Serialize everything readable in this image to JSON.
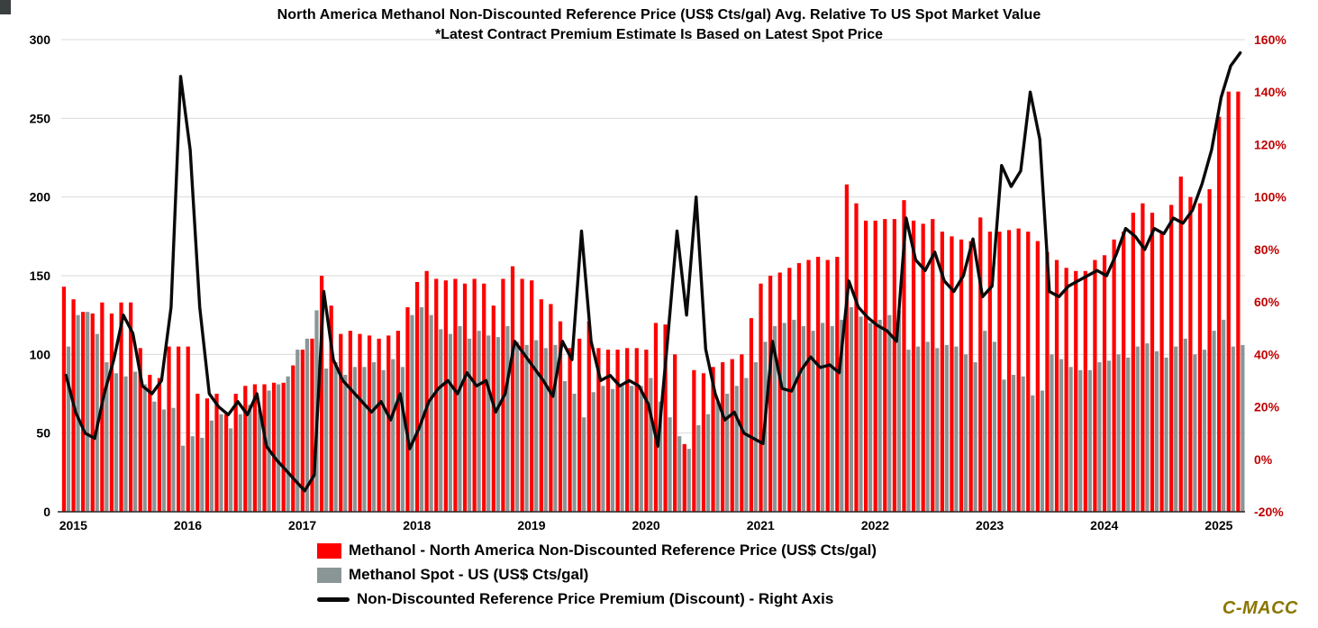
{
  "branding": {
    "watermark": "C-MACC",
    "color": "#8a7600"
  },
  "chart_data": {
    "type": "bar",
    "combo": "dual-axis bar + line",
    "title": "North America Methanol Non-Discounted Reference Price (US$ Cts/gal) Avg. Relative To US Spot Market Value",
    "subtitle": "*Latest Contract Premium Estimate Is Based on Latest Spot Price",
    "frequency": "monthly",
    "x_start": "2015-01",
    "x_end": "2025-04",
    "year_labels": [
      "2015",
      "2016",
      "2017",
      "2018",
      "2019",
      "2020",
      "2021",
      "2022",
      "2023",
      "2024",
      "2025"
    ],
    "axes": {
      "left": {
        "min": 0,
        "max": 300,
        "ticks": [
          0,
          50,
          100,
          150,
          200,
          250,
          300
        ],
        "label_color": "#000000"
      },
      "right": {
        "min": -20,
        "max": 160,
        "ticks": [
          -20,
          0,
          20,
          40,
          60,
          80,
          100,
          120,
          140,
          160
        ],
        "unit": "%",
        "label_color": "#C00000"
      }
    },
    "grid": {
      "horizontal": true,
      "color": "#d9d9d9"
    },
    "legend_position": "bottom-left",
    "series": [
      {
        "name": "Methanol - North America Non-Discounted Reference Price (US$ Cts/gal)",
        "type": "bar",
        "axis": "left",
        "color": "#fe0000",
        "values": [
          143,
          135,
          127,
          126,
          133,
          126,
          133,
          133,
          104,
          87,
          85,
          105,
          105,
          105,
          75,
          72,
          75,
          62,
          75,
          80,
          81,
          81,
          82,
          82,
          93,
          103,
          110,
          150,
          131,
          113,
          115,
          113,
          112,
          110,
          112,
          115,
          130,
          146,
          153,
          148,
          147,
          148,
          145,
          148,
          145,
          131,
          148,
          156,
          148,
          147,
          135,
          132,
          121,
          104,
          110,
          121,
          104,
          103,
          103,
          104,
          104,
          103,
          120,
          119,
          100,
          43,
          90,
          88,
          92,
          95,
          97,
          100,
          123,
          145,
          150,
          152,
          155,
          158,
          160,
          162,
          160,
          162,
          208,
          196,
          185,
          185,
          186,
          186,
          198,
          185,
          183,
          186,
          178,
          175,
          173,
          172,
          187,
          178,
          178,
          179,
          180,
          178,
          172,
          165,
          160,
          155,
          153,
          153,
          160,
          163,
          173,
          178,
          190,
          196,
          190,
          178,
          195,
          213,
          200,
          196,
          205,
          251,
          267,
          267
        ]
      },
      {
        "name": "Methanol Spot - US (US$ Cts/gal)",
        "type": "bar",
        "axis": "left",
        "color": "#8a9696",
        "values": [
          105,
          125,
          127,
          113,
          95,
          88,
          86,
          89,
          81,
          70,
          65,
          66,
          42,
          48,
          47,
          58,
          62,
          53,
          62,
          68,
          65,
          77,
          81,
          86,
          103,
          110,
          128,
          91,
          95,
          87,
          92,
          92,
          95,
          90,
          97,
          92,
          125,
          130,
          125,
          116,
          113,
          118,
          110,
          115,
          112,
          111,
          118,
          108,
          106,
          109,
          104,
          106,
          83,
          75,
          60,
          76,
          80,
          78,
          80,
          80,
          80,
          85,
          70,
          60,
          48,
          40,
          55,
          62,
          70,
          75,
          80,
          85,
          95,
          108,
          118,
          120,
          122,
          118,
          115,
          120,
          118,
          122,
          130,
          124,
          120,
          122,
          125,
          128,
          103,
          105,
          108,
          104,
          106,
          105,
          100,
          95,
          115,
          108,
          84,
          87,
          86,
          74,
          77,
          100,
          97,
          92,
          90,
          90,
          95,
          96,
          100,
          98,
          105,
          107,
          102,
          98,
          105,
          110,
          100,
          103,
          115,
          122,
          105,
          106
        ]
      },
      {
        "name": "Non-Discounted Reference Price Premium (Discount) - Right Axis",
        "type": "line",
        "axis": "right",
        "color": "#0a0a0a",
        "values": [
          32,
          18,
          10,
          8,
          25,
          38,
          55,
          48,
          28,
          25,
          30,
          58,
          146,
          118,
          58,
          25,
          20,
          17,
          22,
          17,
          25,
          5,
          0,
          -4,
          -8,
          -12,
          -6,
          64,
          38,
          30,
          26,
          22,
          18,
          22,
          15,
          25,
          4,
          12,
          22,
          27,
          30,
          25,
          33,
          28,
          30,
          18,
          25,
          45,
          40,
          35,
          30,
          24,
          45,
          38,
          87,
          45,
          30,
          32,
          28,
          30,
          28,
          21,
          5,
          45,
          87,
          55,
          100,
          42,
          25,
          15,
          18,
          10,
          8,
          6,
          45,
          27,
          26,
          34,
          39,
          35,
          36,
          33,
          68,
          58,
          54,
          51,
          49,
          45,
          92,
          76,
          72,
          79,
          68,
          64,
          70,
          84,
          62,
          66,
          112,
          104,
          110,
          140,
          122,
          64,
          62,
          66,
          68,
          70,
          72,
          70,
          78,
          88,
          85,
          80,
          88,
          86,
          92,
          90,
          95,
          105,
          118,
          138,
          150,
          155
        ]
      }
    ]
  }
}
